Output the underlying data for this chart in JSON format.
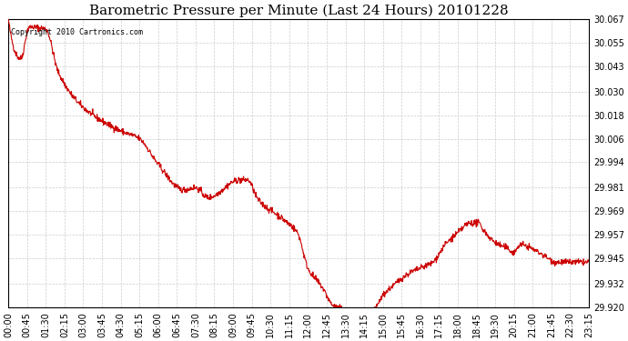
{
  "title": "Barometric Pressure per Minute (Last 24 Hours) 20101228",
  "copyright_text": "Copyright 2010 Cartronics.com",
  "line_color": "#cc0000",
  "background_color": "#ffffff",
  "grid_color": "#cccccc",
  "ylim": [
    29.92,
    30.067
  ],
  "yticks": [
    29.92,
    29.932,
    29.945,
    29.957,
    29.969,
    29.981,
    29.994,
    30.006,
    30.018,
    30.03,
    30.043,
    30.055,
    30.067
  ],
  "xtick_labels": [
    "00:00",
    "00:45",
    "01:30",
    "02:15",
    "03:00",
    "03:45",
    "04:30",
    "05:15",
    "06:00",
    "06:45",
    "07:30",
    "08:15",
    "09:00",
    "09:45",
    "10:30",
    "11:15",
    "12:00",
    "12:45",
    "13:30",
    "14:15",
    "15:00",
    "15:45",
    "16:30",
    "17:15",
    "18:00",
    "18:45",
    "19:30",
    "20:15",
    "21:00",
    "21:45",
    "22:30",
    "23:15"
  ],
  "key_minutes": [
    0,
    30,
    50,
    90,
    120,
    180,
    270,
    315,
    360,
    420,
    450,
    480,
    555,
    575,
    600,
    660,
    695,
    720,
    755,
    780,
    812,
    820,
    840,
    870,
    900,
    930,
    960,
    990,
    1020,
    1050,
    1080,
    1110,
    1130,
    1140,
    1170,
    1200,
    1215,
    1230,
    1275,
    1320,
    1395
  ],
  "key_pressures": [
    30.067,
    30.047,
    30.063,
    30.062,
    30.04,
    30.022,
    30.01,
    30.006,
    29.993,
    29.98,
    29.981,
    29.976,
    29.985,
    29.985,
    29.975,
    29.965,
    29.958,
    29.94,
    29.93,
    29.921,
    29.918,
    29.912,
    29.911,
    29.915,
    29.926,
    29.932,
    29.937,
    29.94,
    29.943,
    29.952,
    29.958,
    29.963,
    29.963,
    29.96,
    29.953,
    29.95,
    29.948,
    29.952,
    29.948,
    29.943,
    29.943
  ]
}
